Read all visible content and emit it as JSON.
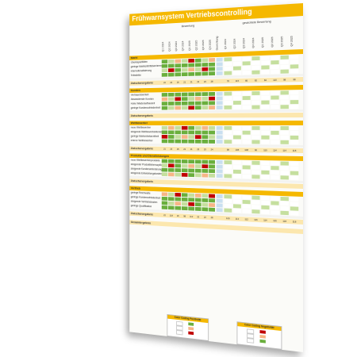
{
  "title": "Frühwarnsystem Vertriebscontrolling",
  "header": {
    "bewertung_label": "Bewertung",
    "gewichtung_label": "Gewichtung",
    "gewichtete_label": "gewichtete Bewertung"
  },
  "periods": [
    "Q1 2024",
    "Q2 2024",
    "Q3 2024",
    "Q4 2024",
    "Q1 2025",
    "Q2 2025",
    "Q3 2025",
    "Q4 2025"
  ],
  "colors": {
    "title": "#f5b800",
    "green": "#6aaf3d",
    "light_green": "#c5df9e",
    "orange": "#f6b686",
    "red": "#c00000",
    "blue": "#c9dff0",
    "zw": "#fce7ae"
  },
  "sections": [
    {
      "name": "Markt",
      "rows": [
        "Überkapazitäten",
        "geringe Markteintrittsbarrieren",
        "Internationalisierung",
        "Teilmärkte"
      ],
      "zw_label": "Zwischenergebnis",
      "zw_vals": [
        "22",
        "23",
        "26",
        "21",
        "21",
        "23",
        "23",
        "28"
      ],
      "zw_weighted": [
        "78",
        "115",
        "80",
        "82",
        "84",
        "110",
        "98",
        "98"
      ]
    },
    {
      "name": "Kunden",
      "rows": [
        "Vertrauensverlust",
        "Abwandernde Kunden",
        "Hohe Wiederaufbauzeit",
        "geringe Kundenzufriedenheit"
      ],
      "zw_label": "Zwischenergebnis",
      "zw_vals": [
        "",
        "",
        "",
        "",
        "",
        "",
        "",
        ""
      ],
      "zw_weighted": [
        "",
        "",
        "",
        "",
        "",
        "",
        "",
        ""
      ]
    },
    {
      "name": "Wettbewerber",
      "rows": [
        "neue Wettbewerber",
        "steigende Wettbewerbsintensität",
        "geringe Markenbekanntheit",
        "interne Wettbewerber"
      ],
      "zw_label": "Zwischenergebnis",
      "zw_vals": [
        "21",
        "23",
        "26",
        "21",
        "21",
        "23",
        "23",
        "24"
      ],
      "zw_weighted": [
        "98",
        "108",
        "108",
        "96",
        "110",
        "114",
        "114",
        "118"
      ]
    },
    {
      "name": "Produkte und Dienstleistungen",
      "rows": [
        "neue Wettbewerberprodukte",
        "steigender Produktlebenszyklus",
        "steigende Kundenanforderungen",
        "steigende Entwicklungskosten"
      ],
      "zw_label": "Zwischenergebnis",
      "zw_vals": [
        "",
        "",
        "",
        "",
        "",
        "",
        "",
        ""
      ],
      "zw_weighted": [
        "",
        "",
        "",
        "",
        "",
        "",
        "",
        ""
      ]
    },
    {
      "name": "Vertrieb",
      "rows": [
        "geringe Reichweite",
        "geringe Kundenzufriedenheit",
        "steigende Vertriebskosten",
        "geringe Qualifikation"
      ],
      "zw_label": "Zwischenergebnis",
      "zw_vals": [
        "22",
        "118",
        "26",
        "98",
        "112",
        "22",
        "22",
        "28"
      ],
      "zw_weighted": [
        "100",
        "113",
        "112",
        "116",
        "114",
        "116",
        "118",
        "118"
      ]
    }
  ],
  "gesamt_label": "Gesamtergebnis",
  "legend": [
    {
      "title": "Color Coding Positivität"
    },
    {
      "title": "Color Coding Negativität"
    }
  ]
}
